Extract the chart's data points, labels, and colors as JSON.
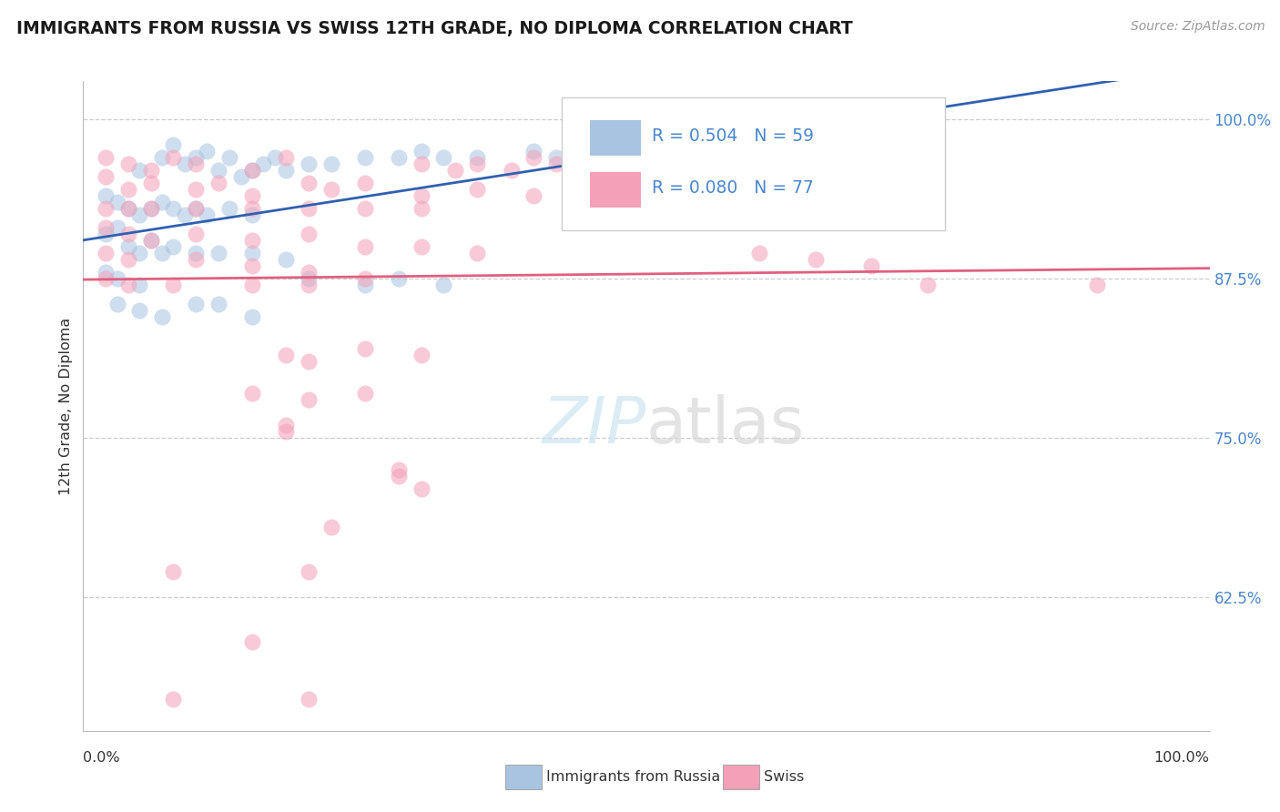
{
  "title": "IMMIGRANTS FROM RUSSIA VS SWISS 12TH GRADE, NO DIPLOMA CORRELATION CHART",
  "source": "Source: ZipAtlas.com",
  "ylabel": "12th Grade, No Diploma",
  "r_russia": 0.504,
  "n_russia": 59,
  "r_swiss": 0.08,
  "n_swiss": 77,
  "legend_label_russia": "Immigrants from Russia",
  "legend_label_swiss": "Swiss",
  "russia_color": "#a8c4e0",
  "swiss_color": "#f4a0b8",
  "russia_line_color": "#3060b0",
  "swiss_line_color": "#e06080",
  "ytick_positions": [
    1.0,
    0.875,
    0.75,
    0.625
  ],
  "ytick_labels": [
    "100.0%",
    "87.5%",
    "75.0%",
    "62.5%"
  ],
  "xlim": [
    0.0,
    1.0
  ],
  "ylim": [
    0.52,
    1.03
  ],
  "russia_points_x": [
    0.05,
    0.07,
    0.08,
    0.09,
    0.1,
    0.11,
    0.12,
    0.13,
    0.14,
    0.15,
    0.16,
    0.17,
    0.18,
    0.2,
    0.22,
    0.25,
    0.28,
    0.3,
    0.32,
    0.35,
    0.02,
    0.03,
    0.04,
    0.05,
    0.06,
    0.07,
    0.08,
    0.09,
    0.1,
    0.11,
    0.13,
    0.15,
    0.02,
    0.03,
    0.04,
    0.05,
    0.06,
    0.07,
    0.08,
    0.1,
    0.12,
    0.15,
    0.18,
    0.2,
    0.25,
    0.28,
    0.32,
    0.02,
    0.03,
    0.05,
    0.03,
    0.05,
    0.07,
    0.1,
    0.12,
    0.15,
    0.4,
    0.42,
    0.45
  ],
  "russia_points_y": [
    0.96,
    0.97,
    0.98,
    0.965,
    0.97,
    0.975,
    0.96,
    0.97,
    0.955,
    0.96,
    0.965,
    0.97,
    0.96,
    0.965,
    0.965,
    0.97,
    0.97,
    0.975,
    0.97,
    0.97,
    0.94,
    0.935,
    0.93,
    0.925,
    0.93,
    0.935,
    0.93,
    0.925,
    0.93,
    0.925,
    0.93,
    0.925,
    0.91,
    0.915,
    0.9,
    0.895,
    0.905,
    0.895,
    0.9,
    0.895,
    0.895,
    0.895,
    0.89,
    0.875,
    0.87,
    0.875,
    0.87,
    0.88,
    0.875,
    0.87,
    0.855,
    0.85,
    0.845,
    0.855,
    0.855,
    0.845,
    0.975,
    0.97,
    0.97
  ],
  "swiss_points_x": [
    0.02,
    0.04,
    0.06,
    0.08,
    0.1,
    0.15,
    0.18,
    0.3,
    0.33,
    0.35,
    0.38,
    0.4,
    0.42,
    0.45,
    0.02,
    0.04,
    0.06,
    0.1,
    0.12,
    0.15,
    0.2,
    0.22,
    0.25,
    0.3,
    0.35,
    0.4,
    0.02,
    0.04,
    0.06,
    0.1,
    0.15,
    0.2,
    0.25,
    0.3,
    0.02,
    0.04,
    0.06,
    0.1,
    0.15,
    0.2,
    0.25,
    0.3,
    0.35,
    0.02,
    0.04,
    0.1,
    0.15,
    0.2,
    0.25,
    0.02,
    0.04,
    0.08,
    0.15,
    0.2,
    0.18,
    0.2,
    0.25,
    0.3,
    0.15,
    0.2,
    0.25,
    0.18,
    0.18,
    0.28,
    0.28,
    0.22,
    0.3,
    0.08,
    0.2,
    0.15,
    0.08,
    0.2,
    0.6,
    0.65,
    0.7,
    0.75,
    0.9
  ],
  "swiss_points_y": [
    0.97,
    0.965,
    0.96,
    0.97,
    0.965,
    0.96,
    0.97,
    0.965,
    0.96,
    0.965,
    0.96,
    0.97,
    0.965,
    0.965,
    0.955,
    0.945,
    0.95,
    0.945,
    0.95,
    0.94,
    0.95,
    0.945,
    0.95,
    0.94,
    0.945,
    0.94,
    0.93,
    0.93,
    0.93,
    0.93,
    0.93,
    0.93,
    0.93,
    0.93,
    0.915,
    0.91,
    0.905,
    0.91,
    0.905,
    0.91,
    0.9,
    0.9,
    0.895,
    0.895,
    0.89,
    0.89,
    0.885,
    0.88,
    0.875,
    0.875,
    0.87,
    0.87,
    0.87,
    0.87,
    0.815,
    0.81,
    0.82,
    0.815,
    0.785,
    0.78,
    0.785,
    0.755,
    0.76,
    0.72,
    0.725,
    0.68,
    0.71,
    0.645,
    0.645,
    0.59,
    0.545,
    0.545,
    0.895,
    0.89,
    0.885,
    0.87,
    0.87
  ]
}
